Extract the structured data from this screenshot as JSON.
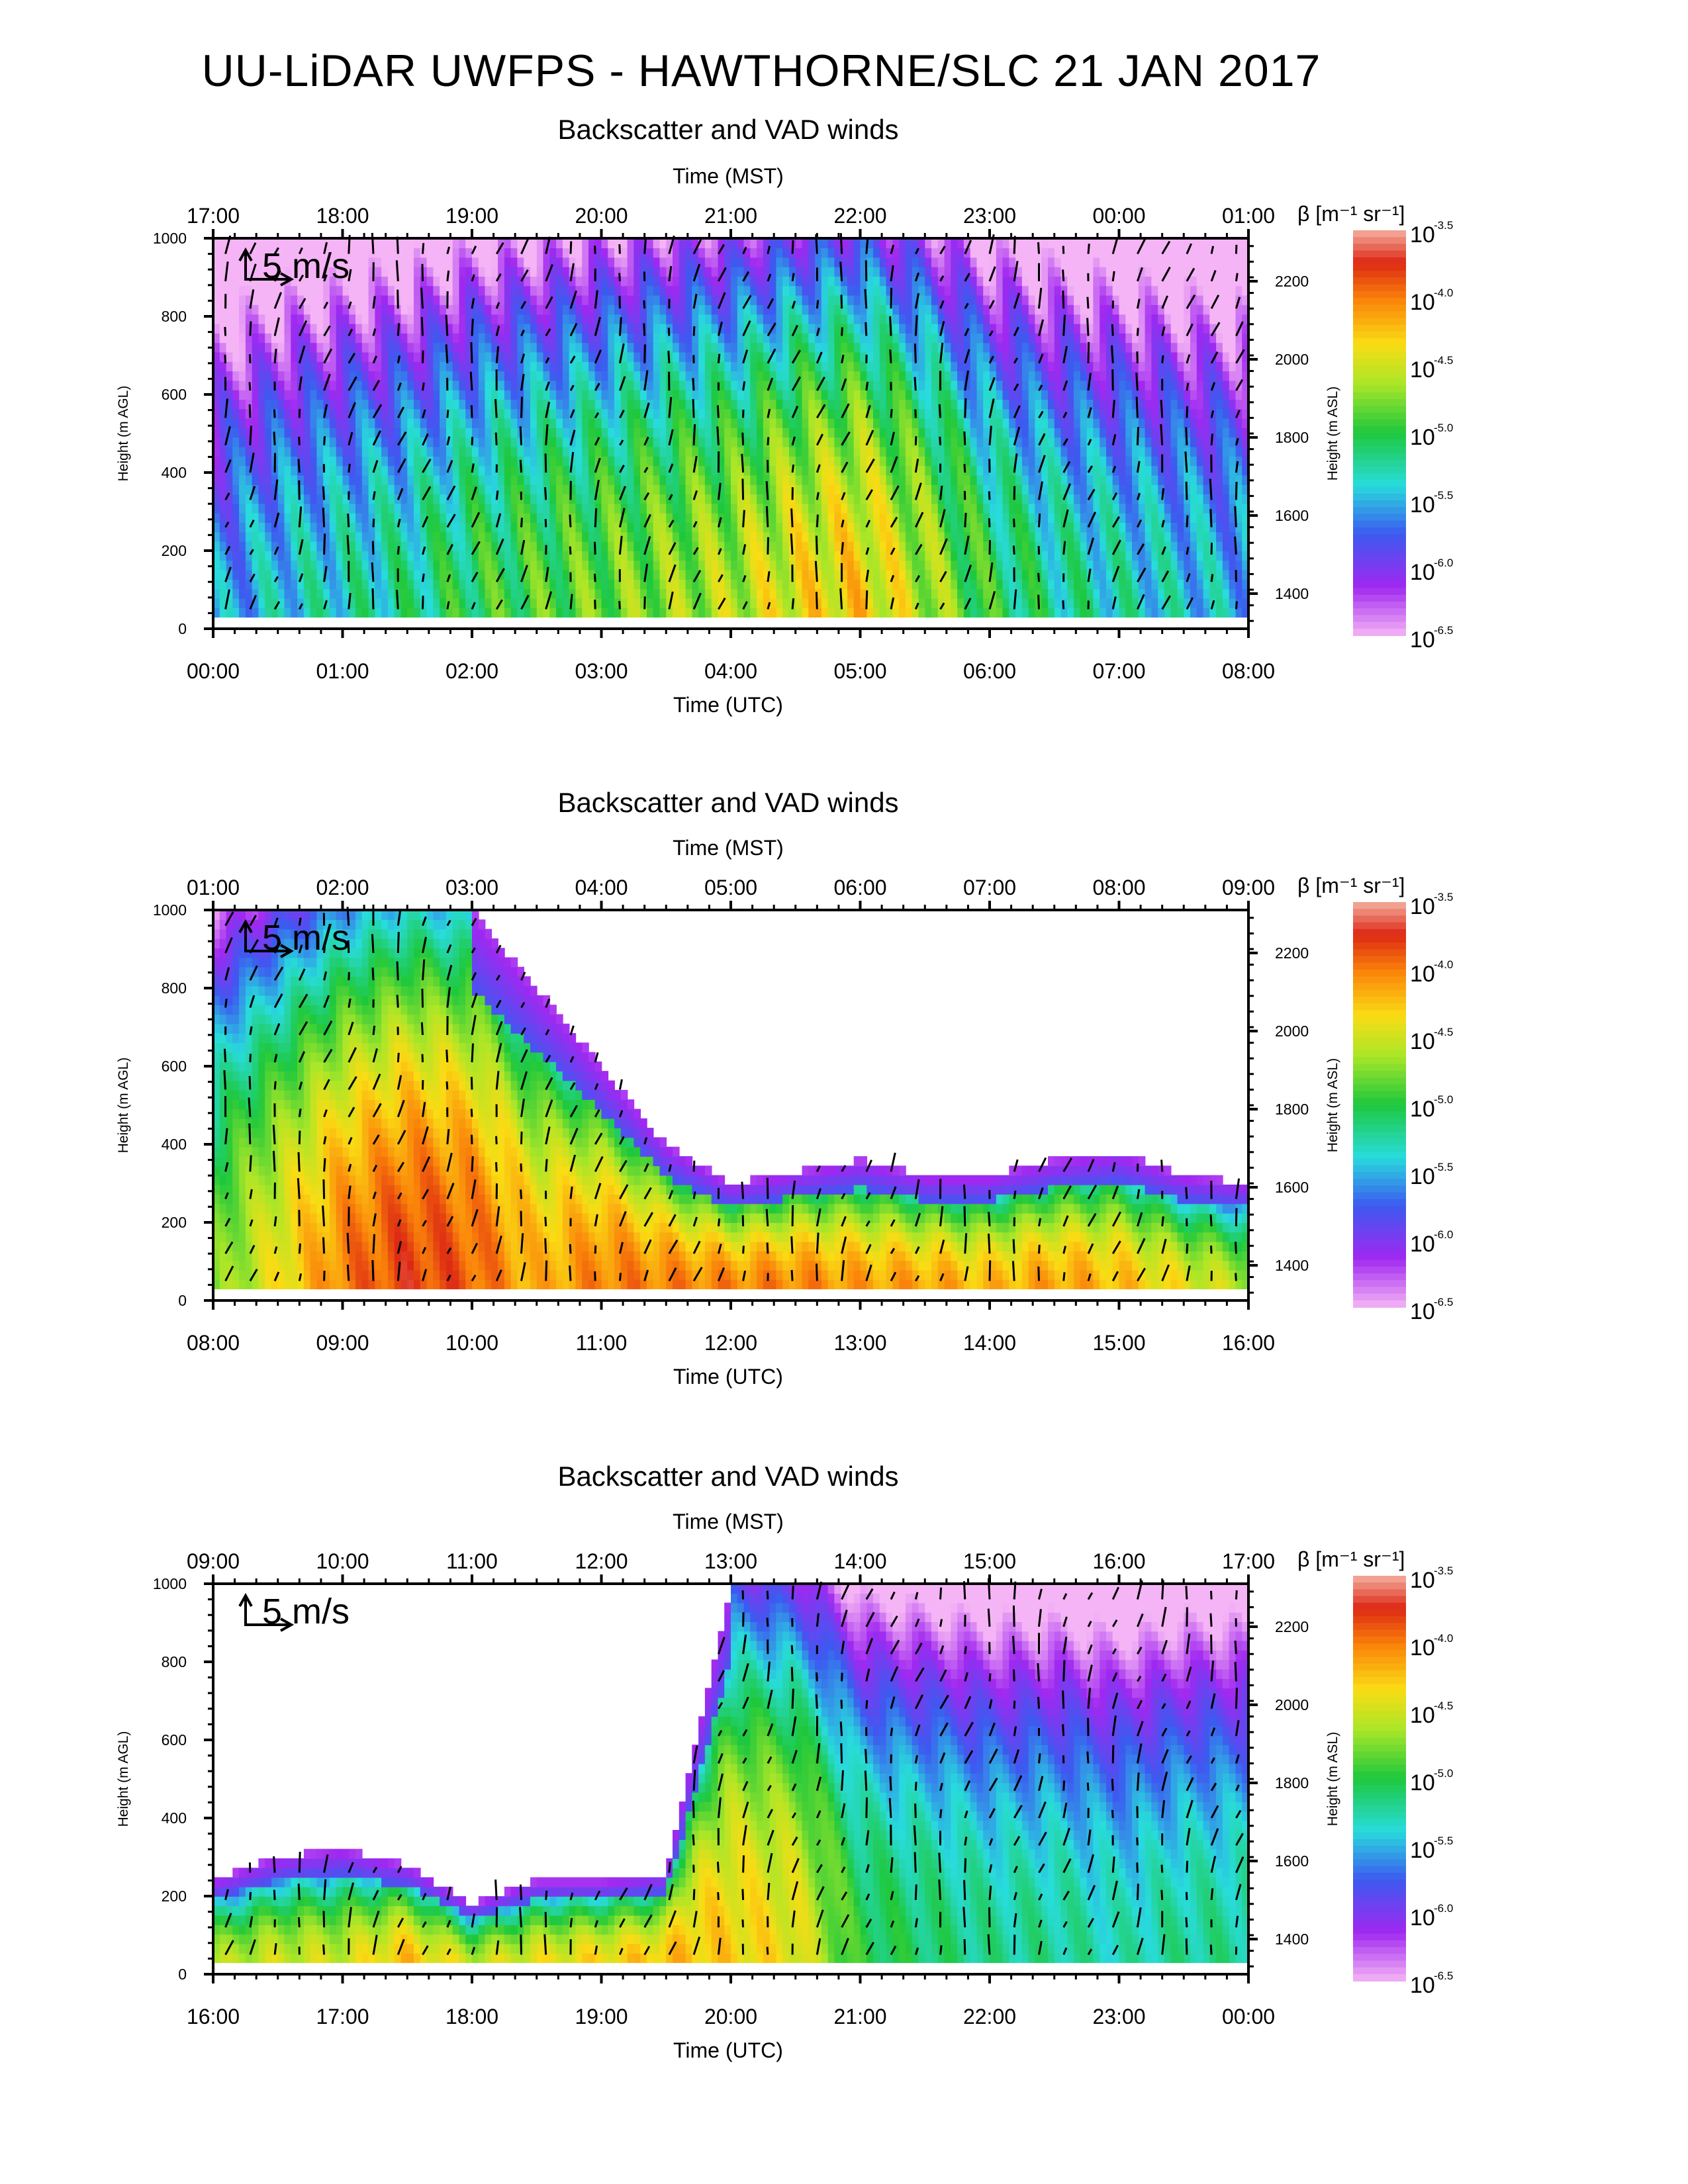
{
  "title": "UU-LiDAR UWFPS - HAWTHORNE/SLC 21 JAN 2017",
  "colorbar": {
    "label": "β [m⁻¹ sr⁻¹]",
    "ticks": [
      "10-3.5",
      "10-4.0",
      "10-4.5",
      "10-5.0",
      "10-5.5",
      "10-6.0",
      "10-6.5"
    ],
    "exponents": [
      "-3.5",
      "-4.0",
      "-4.5",
      "-5.0",
      "-5.5",
      "-6.0",
      "-6.5"
    ],
    "base": "10"
  },
  "wind_scale_label": "5 m/s",
  "chart_data": [
    {
      "type": "heatmap",
      "title": "Backscatter and VAD winds",
      "xlabel_bottom": "Time (UTC)",
      "xlabel_top": "Time (MST)",
      "ylabel_left": "Height (m AGL)",
      "ylabel_right": "Height (m ASL)",
      "x_ticks_utc": [
        "00:00",
        "01:00",
        "02:00",
        "03:00",
        "04:00",
        "05:00",
        "06:00",
        "07:00",
        "08:00"
      ],
      "x_ticks_mst": [
        "17:00",
        "18:00",
        "19:00",
        "20:00",
        "21:00",
        "22:00",
        "23:00",
        "00:00",
        "01:00"
      ],
      "y_ticks_agl": [
        "0",
        "200",
        "400",
        "600",
        "800",
        "1000"
      ],
      "y_ticks_asl": [
        "1400",
        "1600",
        "1800",
        "2000",
        "2200"
      ],
      "ylim_agl": [
        0,
        1000
      ],
      "colorscale": "log10 backscatter, -6.5 to -3.5",
      "description_values": {
        "utc_hours": [
          0,
          0.5,
          1,
          1.5,
          2,
          2.5,
          3,
          3.5,
          4,
          4.5,
          5,
          5.5,
          6,
          6.5,
          7,
          7.5,
          8
        ],
        "log10_beta_near_surface": [
          -5.6,
          -5.4,
          -5.3,
          -5.2,
          -5.0,
          -4.9,
          -4.8,
          -4.7,
          -4.6,
          -4.4,
          -4.3,
          -4.6,
          -5.0,
          -5.2,
          -5.3,
          -5.4,
          -5.5
        ],
        "aerosol_top_agl_m": [
          1000,
          1000,
          1000,
          1000,
          1000,
          1000,
          1000,
          1000,
          1000,
          1000,
          1000,
          1000,
          1000,
          1000,
          1000,
          1000,
          1000
        ]
      }
    },
    {
      "type": "heatmap",
      "title": "Backscatter and VAD winds",
      "xlabel_bottom": "Time (UTC)",
      "xlabel_top": "Time (MST)",
      "ylabel_left": "Height (m AGL)",
      "ylabel_right": "Height (m ASL)",
      "x_ticks_utc": [
        "08:00",
        "09:00",
        "10:00",
        "11:00",
        "12:00",
        "13:00",
        "14:00",
        "15:00",
        "16:00"
      ],
      "x_ticks_mst": [
        "01:00",
        "02:00",
        "03:00",
        "04:00",
        "05:00",
        "06:00",
        "07:00",
        "08:00",
        "09:00"
      ],
      "y_ticks_agl": [
        "0",
        "200",
        "400",
        "600",
        "800",
        "1000"
      ],
      "y_ticks_asl": [
        "1400",
        "1600",
        "1800",
        "2000",
        "2200"
      ],
      "ylim_agl": [
        0,
        1000
      ],
      "colorscale": "log10 backscatter, -6.5 to -3.5",
      "description_values": {
        "utc_hours": [
          8,
          8.5,
          9,
          9.5,
          10,
          10.5,
          11,
          11.5,
          12,
          12.5,
          13,
          13.5,
          14,
          14.5,
          15,
          15.5,
          16
        ],
        "log10_beta_near_surface": [
          -4.8,
          -4.4,
          -4.0,
          -3.8,
          -3.9,
          -4.2,
          -4.0,
          -4.0,
          -4.0,
          -4.0,
          -4.1,
          -4.1,
          -4.2,
          -4.1,
          -4.2,
          -4.4,
          -4.6
        ],
        "aerosol_top_agl_m": [
          1000,
          1000,
          1000,
          1000,
          1000,
          800,
          600,
          400,
          300,
          330,
          360,
          320,
          320,
          360,
          380,
          320,
          300
        ]
      }
    },
    {
      "type": "heatmap",
      "title": "Backscatter and VAD winds",
      "xlabel_bottom": "Time (UTC)",
      "xlabel_top": "Time (MST)",
      "ylabel_left": "Height (m AGL)",
      "ylabel_right": "Height (m ASL)",
      "x_ticks_utc": [
        "16:00",
        "17:00",
        "18:00",
        "19:00",
        "20:00",
        "21:00",
        "22:00",
        "23:00",
        "00:00"
      ],
      "x_ticks_mst": [
        "09:00",
        "10:00",
        "11:00",
        "12:00",
        "13:00",
        "14:00",
        "15:00",
        "16:00",
        "17:00"
      ],
      "y_ticks_agl": [
        "0",
        "200",
        "400",
        "600",
        "800",
        "1000"
      ],
      "y_ticks_asl": [
        "1400",
        "1600",
        "1800",
        "2000",
        "2200"
      ],
      "ylim_agl": [
        0,
        1000
      ],
      "colorscale": "log10 backscatter, -6.5 to -3.5",
      "description_values": {
        "utc_hours": [
          16,
          16.5,
          17,
          17.5,
          18,
          18.5,
          19,
          19.5,
          20,
          20.5,
          21,
          21.5,
          22,
          22.5,
          23,
          23.5,
          24
        ],
        "log10_beta_near_surface": [
          -4.6,
          -4.5,
          -4.5,
          -4.2,
          -4.5,
          -4.4,
          -4.3,
          -4.2,
          -4.3,
          -4.4,
          -5.0,
          -5.1,
          -5.2,
          -5.2,
          -5.3,
          -5.2,
          -5.2
        ],
        "aerosol_top_agl_m": [
          240,
          300,
          320,
          280,
          180,
          240,
          240,
          260,
          1000,
          1000,
          1000,
          1000,
          1000,
          1000,
          1000,
          1000,
          1000
        ]
      }
    }
  ]
}
